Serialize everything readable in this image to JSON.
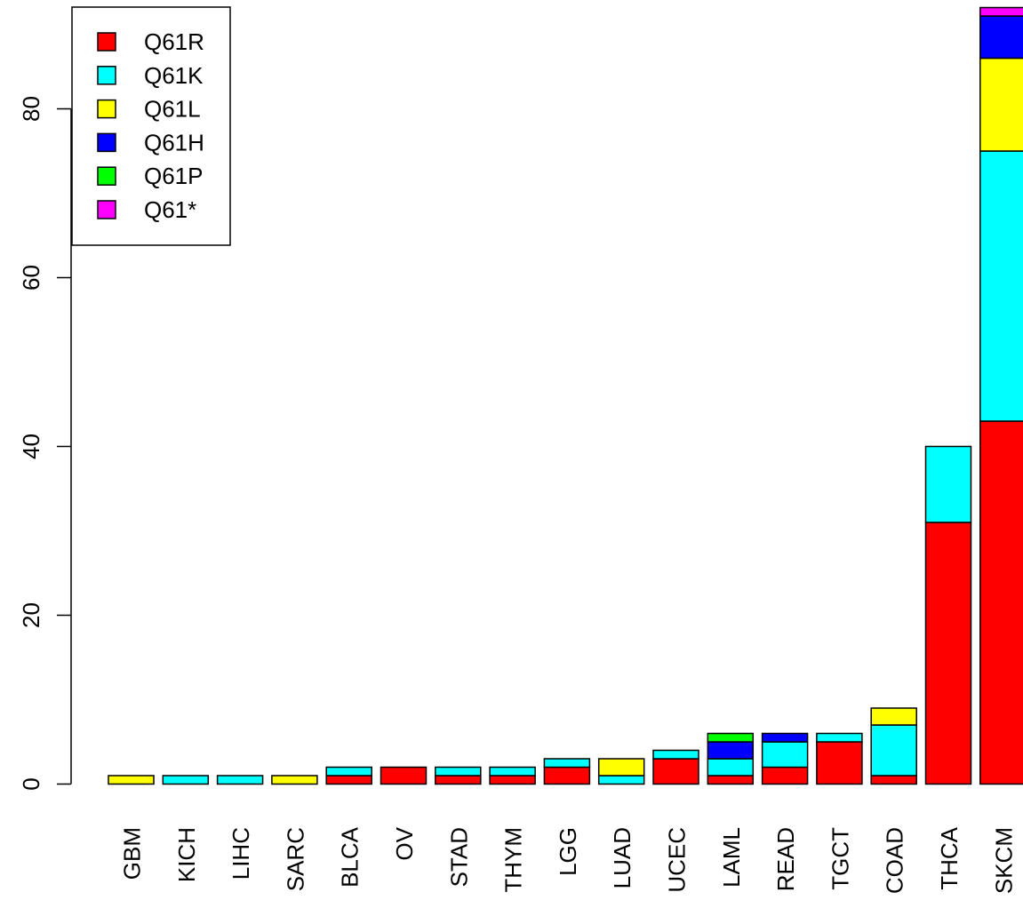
{
  "chart_data": {
    "type": "bar",
    "stacked": true,
    "categories": [
      "GBM",
      "KICH",
      "LIHC",
      "SARC",
      "BLCA",
      "OV",
      "STAD",
      "THYM",
      "LGG",
      "LUAD",
      "UCEC",
      "LAML",
      "READ",
      "TGCT",
      "COAD",
      "THCA",
      "SKCM"
    ],
    "series": [
      {
        "name": "Q61R",
        "color": "#ff0000",
        "values": [
          0,
          0,
          0,
          0,
          1,
          2,
          1,
          1,
          2,
          0,
          3,
          1,
          2,
          5,
          1,
          31,
          43
        ]
      },
      {
        "name": "Q61K",
        "color": "#00ffff",
        "values": [
          0,
          1,
          1,
          0,
          1,
          0,
          1,
          1,
          1,
          1,
          1,
          2,
          3,
          1,
          6,
          9,
          32
        ]
      },
      {
        "name": "Q61L",
        "color": "#ffff00",
        "values": [
          1,
          0,
          0,
          1,
          0,
          0,
          0,
          0,
          0,
          2,
          0,
          0,
          0,
          0,
          2,
          0,
          11
        ]
      },
      {
        "name": "Q61H",
        "color": "#0000ff",
        "values": [
          0,
          0,
          0,
          0,
          0,
          0,
          0,
          0,
          0,
          0,
          0,
          2,
          1,
          0,
          0,
          0,
          5
        ]
      },
      {
        "name": "Q61P",
        "color": "#00ff00",
        "values": [
          0,
          0,
          0,
          0,
          0,
          0,
          0,
          0,
          0,
          0,
          0,
          1,
          0,
          0,
          0,
          0,
          0
        ]
      },
      {
        "name": "Q61*",
        "color": "#ff00ff",
        "values": [
          0,
          0,
          0,
          0,
          0,
          0,
          0,
          0,
          0,
          0,
          0,
          0,
          0,
          0,
          0,
          0,
          1
        ]
      }
    ],
    "ylim": [
      0,
      92
    ],
    "yticks": [
      0,
      20,
      40,
      60,
      80
    ],
    "title": "",
    "xlabel": "",
    "ylabel": "",
    "legend": "top-left",
    "grid": false
  }
}
